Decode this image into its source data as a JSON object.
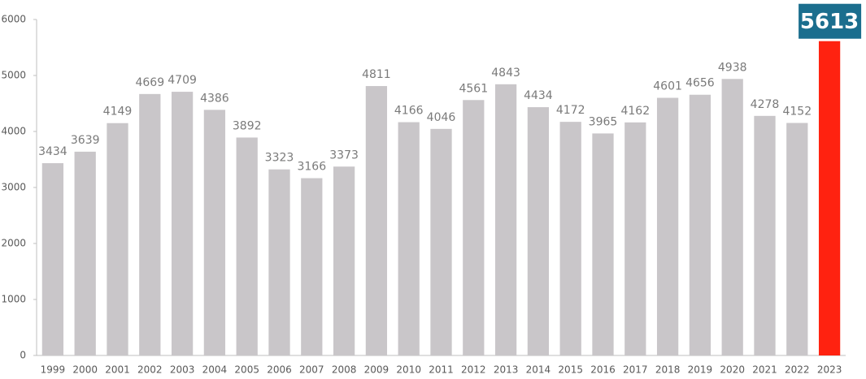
{
  "chart_data": {
    "type": "bar",
    "categories": [
      "1999",
      "2000",
      "2001",
      "2002",
      "2003",
      "2004",
      "2005",
      "2006",
      "2007",
      "2008",
      "2009",
      "2010",
      "2011",
      "2012",
      "2013",
      "2014",
      "2015",
      "2016",
      "2017",
      "2018",
      "2019",
      "2020",
      "2021",
      "2022",
      "2023"
    ],
    "values": [
      3434,
      3639,
      4149,
      4669,
      4709,
      4386,
      3892,
      3323,
      3166,
      3373,
      4811,
      4166,
      4046,
      4561,
      4843,
      4434,
      4172,
      3965,
      4162,
      4601,
      4656,
      4938,
      4278,
      4152,
      5613
    ],
    "colors": [
      "#c9c6c9",
      "#c9c6c9",
      "#c9c6c9",
      "#c9c6c9",
      "#c9c6c9",
      "#c9c6c9",
      "#c9c6c9",
      "#c9c6c9",
      "#c9c6c9",
      "#c9c6c9",
      "#c9c6c9",
      "#c9c6c9",
      "#c9c6c9",
      "#c9c6c9",
      "#c9c6c9",
      "#c9c6c9",
      "#c9c6c9",
      "#c9c6c9",
      "#c9c6c9",
      "#c9c6c9",
      "#c9c6c9",
      "#c9c6c9",
      "#c9c6c9",
      "#c9c6c9",
      "#ff2210"
    ],
    "label_box_color": "#1b6e8e",
    "ylim": [
      0,
      6000
    ],
    "yticks": [
      0,
      1000,
      2000,
      3000,
      4000,
      5000,
      6000
    ],
    "grid": false
  }
}
